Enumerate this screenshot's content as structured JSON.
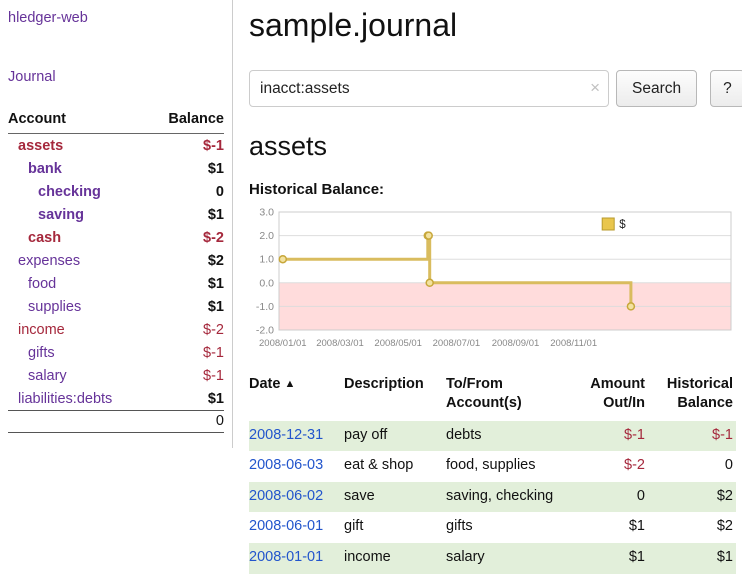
{
  "colors": {
    "purple": "#663399",
    "blue": "#2255cc",
    "red": "#a5283c",
    "green": "#e2efda",
    "gold": "#d9bc5e"
  },
  "sidebar": {
    "brand": "hledger-web",
    "journal_link": "Journal",
    "accounts_header": {
      "account": "Account",
      "balance": "Balance"
    },
    "accounts": [
      {
        "name": "assets",
        "indent": 1,
        "bold": true,
        "negative_name": true,
        "balance": "$-1",
        "negative_balance": true
      },
      {
        "name": "bank",
        "indent": 2,
        "bold": true,
        "negative_name": false,
        "balance": "$1",
        "negative_balance": false
      },
      {
        "name": "checking",
        "indent": 3,
        "bold": true,
        "negative_name": false,
        "balance": "0",
        "negative_balance": false
      },
      {
        "name": "saving",
        "indent": 3,
        "bold": true,
        "negative_name": false,
        "balance": "$1",
        "negative_balance": false
      },
      {
        "name": "cash",
        "indent": 2,
        "bold": true,
        "negative_name": true,
        "balance": "$-2",
        "negative_balance": true
      },
      {
        "name": "expenses",
        "indent": 1,
        "bold": false,
        "negative_name": false,
        "balance": "$2",
        "negative_balance": false
      },
      {
        "name": "food",
        "indent": 2,
        "bold": false,
        "negative_name": false,
        "balance": "$1",
        "negative_balance": false
      },
      {
        "name": "supplies",
        "indent": 2,
        "bold": false,
        "negative_name": false,
        "balance": "$1",
        "negative_balance": false
      },
      {
        "name": "income",
        "indent": 1,
        "bold": false,
        "negative_name": true,
        "balance": "$-2",
        "negative_balance": true
      },
      {
        "name": "gifts",
        "indent": 2,
        "bold": false,
        "negative_name": false,
        "balance": "$-1",
        "negative_balance": true
      },
      {
        "name": "salary",
        "indent": 2,
        "bold": false,
        "negative_name": false,
        "balance": "$-1",
        "negative_balance": true
      },
      {
        "name": "liabilities:debts",
        "indent": 1,
        "bold": false,
        "negative_name": false,
        "balance": "$1",
        "negative_balance": false
      }
    ],
    "total": "0"
  },
  "main": {
    "title": "sample.journal",
    "search": {
      "value": "inacct:assets",
      "clear_icon": "×",
      "button_label": "Search",
      "help_label": "?"
    },
    "account_heading": "assets",
    "chart_title": "Historical Balance:"
  },
  "chart_data": {
    "type": "line",
    "style": "step-after",
    "title": "Historical Balance",
    "series": [
      {
        "name": "$",
        "points": [
          [
            "2008-01-01",
            1
          ],
          [
            "2008-06-01",
            2
          ],
          [
            "2008-06-02",
            2
          ],
          [
            "2008-06-03",
            0
          ],
          [
            "2008-12-31",
            -1
          ]
        ]
      }
    ],
    "y_ticks": [
      3.0,
      2.0,
      1.0,
      0.0,
      -1.0,
      -2.0
    ],
    "ylim": [
      -2,
      3
    ],
    "xlim": [
      "2007-12-28",
      "2009-04-15"
    ],
    "x_ticks": [
      {
        "date": "2008-01-01",
        "label": "2008/01/01"
      },
      {
        "date": "2008-03-01",
        "label": "2008/03/01"
      },
      {
        "date": "2008-05-01",
        "label": "2008/05/01"
      },
      {
        "date": "2008-07-01",
        "label": "2008/07/01"
      },
      {
        "date": "2008-09-01",
        "label": "2008/09/01"
      },
      {
        "date": "2008-11-01",
        "label": "2008/11/01"
      }
    ],
    "grid": true,
    "negative_region_color": "#ffdcdc",
    "line_color": "#d9bc5e",
    "marker_fill": "#f3e2a0",
    "marker_border": "#c7a73a",
    "legend": {
      "label": "$",
      "position": "top-right",
      "swatch_fill": "#e9c64d",
      "swatch_border": "#b89b2e"
    }
  },
  "register": {
    "headers": {
      "date": "Date",
      "description": "Description",
      "account": "To/From Account(s)",
      "amount": "Amount Out/In",
      "balance": "Historical Balance"
    },
    "sort_icon": "▲",
    "rows": [
      {
        "date": "2008-12-31",
        "description": "pay off",
        "accounts": "debts",
        "amount": "$-1",
        "amount_negative": true,
        "balance": "$-1",
        "balance_negative": true,
        "shaded": true
      },
      {
        "date": "2008-06-03",
        "description": "eat & shop",
        "accounts": "food, supplies",
        "amount": "$-2",
        "amount_negative": true,
        "balance": "0",
        "balance_negative": false,
        "shaded": false
      },
      {
        "date": "2008-06-02",
        "description": "save",
        "accounts": "saving, checking",
        "amount": "0",
        "amount_negative": false,
        "balance": "$2",
        "balance_negative": false,
        "shaded": true
      },
      {
        "date": "2008-06-01",
        "description": "gift",
        "accounts": "gifts",
        "amount": "$1",
        "amount_negative": false,
        "balance": "$2",
        "balance_negative": false,
        "shaded": false
      },
      {
        "date": "2008-01-01",
        "description": "income",
        "accounts": "salary",
        "amount": "$1",
        "amount_negative": false,
        "balance": "$1",
        "balance_negative": false,
        "shaded": true
      }
    ]
  }
}
